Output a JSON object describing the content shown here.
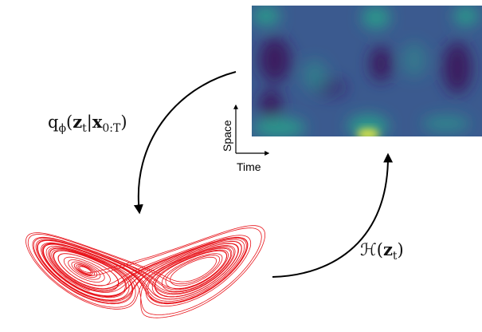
{
  "heatmap": {
    "colors": {
      "base": "#3b5a8f",
      "dark": "#3a1c61",
      "teal": "#2a9a8b",
      "bright": "#d9e34a"
    }
  },
  "axes": {
    "x_label": "Time",
    "y_label": "Space"
  },
  "labels": {
    "encoder": {
      "q": "q",
      "phi": "ϕ",
      "open": "(",
      "z": "z",
      "t": "t",
      "bar": "|",
      "x": "x",
      "range": "0:T",
      "close": ")"
    },
    "decoder": {
      "H": "ℋ",
      "open": "(",
      "z": "z",
      "t": "t",
      "close": ")"
    }
  },
  "attractor": {
    "color": "#e8141b"
  },
  "arrows": {
    "color": "#000000"
  }
}
